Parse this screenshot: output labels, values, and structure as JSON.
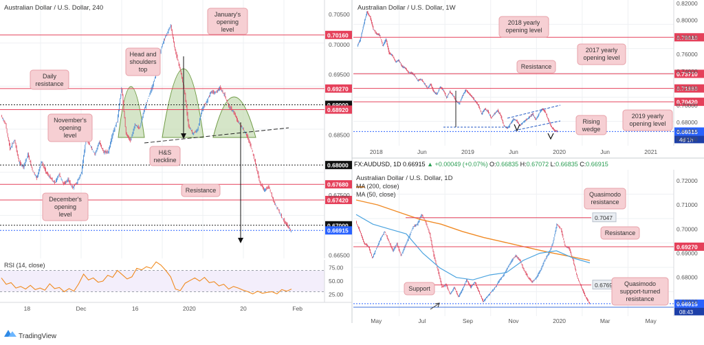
{
  "footer": {
    "brand": "TradingView"
  },
  "colors": {
    "up": "#4e8fd6",
    "down": "#e0566c",
    "level_red": "#e5405a",
    "level_black": "#222222",
    "note_fill": "#f6cfd3",
    "note_stroke": "#e7a0a8",
    "wedge": "#2157c4",
    "h_s_fill": "#c7dcb5",
    "h_s_stroke": "#6e9a44",
    "ma200": "#f08a24",
    "ma50": "#4aa3df",
    "rsi": "#f0891c",
    "price_blue": "#2962ff",
    "grid": "#eef0f3"
  },
  "chart_data": [
    {
      "type": "line",
      "title": "Australian Dollar / U.S. Dollar, 240",
      "x_ticks": [
        "18",
        "Dec",
        "16",
        "2020",
        "20",
        "Feb"
      ],
      "y_ticks": [
        "0.70500",
        "0.70000",
        "0.69500",
        "0.68500",
        "0.67500",
        "0.66500"
      ],
      "ylim": [
        0.6645,
        0.7074
      ],
      "levels": [
        {
          "value": 0.7016,
          "label": "0.70160",
          "color": "red",
          "style": "solid"
        },
        {
          "value": 0.6927,
          "label": "0.69270",
          "color": "red",
          "style": "solid"
        },
        {
          "value": 0.69,
          "label": "0.69000",
          "color": "black",
          "style": "dotted"
        },
        {
          "value": 0.6892,
          "label": "0.68920",
          "color": "red",
          "style": "solid"
        },
        {
          "value": 0.68,
          "label": "0.68000",
          "color": "black",
          "style": "dotted"
        },
        {
          "value": 0.6768,
          "label": "0.67680",
          "color": "red",
          "style": "solid"
        },
        {
          "value": 0.6742,
          "label": "0.67420",
          "color": "red",
          "style": "solid"
        },
        {
          "value": 0.67,
          "label": "0.67000",
          "color": "black",
          "style": "dotted"
        }
      ],
      "last_price": {
        "value": 0.66915,
        "label": "0.66915"
      },
      "annotations": [
        "January's opening level",
        "Head and shoulders top",
        "Daily resistance",
        "November's opening level",
        "H&S neckline",
        "Resistance",
        "December's opening level"
      ],
      "close_path": [
        0.6882,
        0.6868,
        0.6826,
        0.6842,
        0.6805,
        0.6797,
        0.6818,
        0.6792,
        0.6778,
        0.6806,
        0.6789,
        0.6779,
        0.677,
        0.6785,
        0.6768,
        0.6776,
        0.6762,
        0.6771,
        0.6788,
        0.6842,
        0.6832,
        0.6818,
        0.6838,
        0.6821,
        0.6822,
        0.6852,
        0.6873,
        0.6928,
        0.6852,
        0.684,
        0.6868,
        0.686,
        0.689,
        0.6912,
        0.6933,
        0.696,
        0.6998,
        0.7016,
        0.7032,
        0.699,
        0.6962,
        0.6927,
        0.6865,
        0.6852,
        0.6858,
        0.6892,
        0.6904,
        0.6922,
        0.692,
        0.6928,
        0.6917,
        0.6898,
        0.6889,
        0.6873,
        0.6862,
        0.685,
        0.683,
        0.6802,
        0.677,
        0.6758,
        0.6764,
        0.674,
        0.6727,
        0.6712,
        0.67,
        0.669
      ]
    },
    {
      "type": "line",
      "title": "RSI (14, close)",
      "y_ticks": [
        "75.00",
        "50.00",
        "25.00"
      ],
      "ylim": [
        10,
        90
      ],
      "reference_lines": [
        70,
        30
      ],
      "values": [
        56,
        44,
        47,
        37,
        40,
        35,
        42,
        34,
        37,
        33,
        45,
        36,
        38,
        30,
        36,
        31,
        45,
        63,
        52,
        56,
        48,
        50,
        61,
        57,
        70,
        62,
        54,
        58,
        74,
        71,
        77,
        74,
        86,
        80,
        70,
        58,
        35,
        32,
        46,
        51,
        56,
        50,
        57,
        47,
        49,
        41,
        44,
        35,
        40,
        37,
        33,
        30,
        26,
        31,
        27,
        29,
        30,
        26,
        34,
        31,
        35
      ]
    },
    {
      "type": "line",
      "title": "Australian Dollar / U.S. Dollar, 1W",
      "x_ticks": [
        "2018",
        "Jun",
        "2019",
        "Jun",
        "2020",
        "Jun",
        "2021"
      ],
      "y_ticks": [
        "0.82000",
        "0.80000",
        "0.78000",
        "0.76000",
        "0.74000",
        "0.72000",
        "0.70000",
        "0.68000",
        "0.67000",
        "0.66000"
      ],
      "ylim": [
        0.6525,
        0.824
      ],
      "levels": [
        {
          "value": 0.7801,
          "label": "0.78010"
        },
        {
          "value": 0.7371,
          "label": "0.73710"
        },
        {
          "value": 0.7199,
          "label": "0.71990"
        },
        {
          "value": 0.7042,
          "label": "0.70420"
        }
      ],
      "last_price": {
        "value": 0.66915,
        "label": "0.66915"
      },
      "countdown": "4d 1h",
      "annotations": [
        "2018 yearly opening level",
        "2017 yearly opening level",
        "Resistance",
        "Rising wedge",
        "2019 yearly opening level"
      ],
      "close_path": [
        0.7701,
        0.778,
        0.795,
        0.81,
        0.804,
        0.79,
        0.784,
        0.783,
        0.77,
        0.778,
        0.761,
        0.759,
        0.751,
        0.753,
        0.746,
        0.744,
        0.739,
        0.738,
        0.735,
        0.729,
        0.731,
        0.726,
        0.72,
        0.725,
        0.716,
        0.713,
        0.722,
        0.718,
        0.709,
        0.716,
        0.712,
        0.705,
        0.702,
        0.711,
        0.718,
        0.714,
        0.71,
        0.705,
        0.7,
        0.69,
        0.696,
        0.693,
        0.685,
        0.69,
        0.694,
        0.688,
        0.676,
        0.673,
        0.678,
        0.684,
        0.682,
        0.676,
        0.68,
        0.683,
        0.686,
        0.69,
        0.683,
        0.69,
        0.696,
        0.692,
        0.682,
        0.674,
        0.67,
        0.6691
      ]
    },
    {
      "type": "line",
      "title": "Australian Dollar / U.S. Dollar, 1D",
      "info": {
        "symbol": "FX:AUDUSD, 1D",
        "last": "0.66915",
        "change": "+0.00049 (+0.07%)",
        "open_label": "O:",
        "open": "0.66835",
        "high_label": "H:",
        "high": "0.67072",
        "low_label": "L:",
        "low": "0.66835",
        "close_label": "C:",
        "close": "0.66915"
      },
      "legend": [
        "MA (200, close)",
        "MA (50, close)"
      ],
      "x_ticks": [
        "May",
        "Jul",
        "Sep",
        "Nov",
        "2020",
        "Mar",
        "May"
      ],
      "y_ticks": [
        "0.72000",
        "0.71000",
        "0.70000",
        "0.69000",
        "0.68000",
        "0.67000"
      ],
      "ylim": [
        0.664,
        0.7245
      ],
      "levels": [
        {
          "value": 0.7047,
          "label": "0.7047",
          "style": "grey"
        },
        {
          "value": 0.6927,
          "label": "0.69270",
          "style": "red"
        },
        {
          "value": 0.6769,
          "label": "0.6769",
          "style": "grey"
        },
        {
          "value": 0.6677,
          "label": "0.66770",
          "style": "blue"
        }
      ],
      "last_price": {
        "value": 0.66915,
        "label": "0.66915"
      },
      "countdown": "08:43",
      "annotations": [
        "Quasimodo resistance",
        "Resistance",
        "Support",
        "Quasimodo support-turned resistance"
      ],
      "close_path": [
        0.703,
        0.699,
        0.694,
        0.693,
        0.688,
        0.692,
        0.696,
        0.699,
        0.695,
        0.691,
        0.694,
        0.689,
        0.693,
        0.697,
        0.701,
        0.702,
        0.706,
        0.703,
        0.698,
        0.689,
        0.683,
        0.676,
        0.677,
        0.673,
        0.676,
        0.672,
        0.675,
        0.679,
        0.676,
        0.678,
        0.674,
        0.67,
        0.672,
        0.674,
        0.676,
        0.679,
        0.681,
        0.684,
        0.687,
        0.689,
        0.687,
        0.683,
        0.68,
        0.678,
        0.68,
        0.683,
        0.687,
        0.69,
        0.694,
        0.702,
        0.7,
        0.693,
        0.692,
        0.687,
        0.68,
        0.676,
        0.672,
        0.6691
      ],
      "ma200": [
        0.712,
        0.71,
        0.707,
        0.704,
        0.702,
        0.699,
        0.6965,
        0.6945,
        0.6925,
        0.6905,
        0.6888,
        0.687
      ],
      "ma50": [
        0.706,
        0.702,
        0.7,
        0.698,
        0.69,
        0.684,
        0.68,
        0.679,
        0.681,
        0.682,
        0.687,
        0.69,
        0.691,
        0.688,
        0.686
      ]
    }
  ]
}
